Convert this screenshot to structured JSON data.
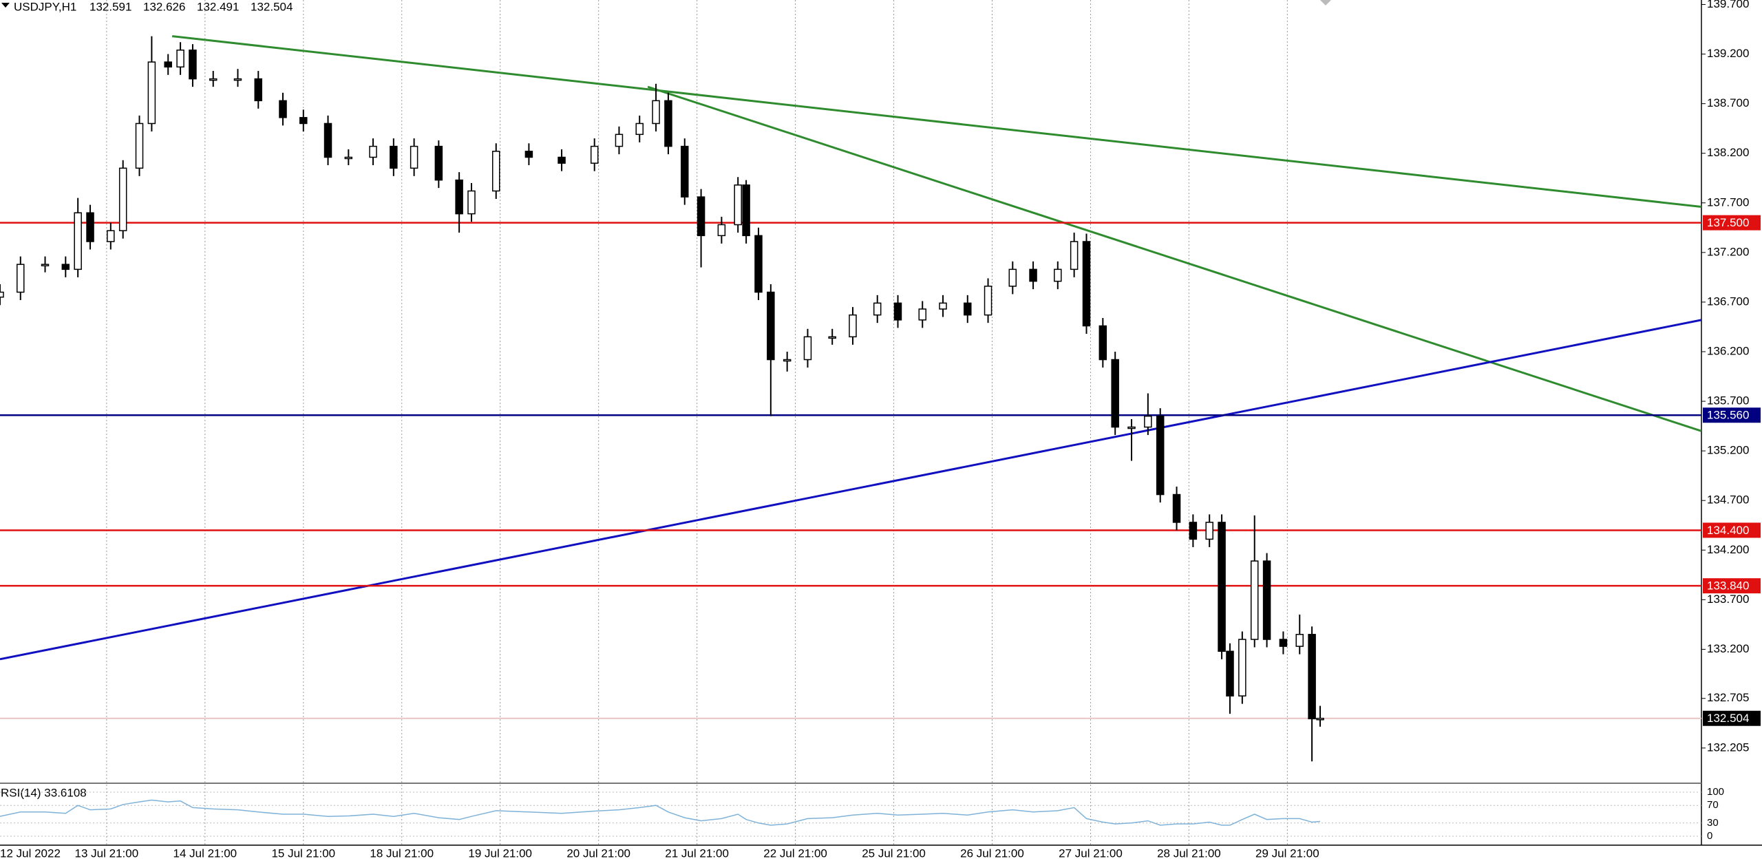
{
  "chart_data": {
    "type": "candlestick",
    "symbol": "USDJPY,H1",
    "quote": [
      132.591,
      132.626,
      132.491,
      132.504
    ],
    "xlim": [
      0,
      415
    ],
    "xticks": [
      {
        "value": 0,
        "label": "12 Jul 2022"
      },
      {
        "value": 26,
        "label": "13 Jul 21:00"
      },
      {
        "value": 50,
        "label": "14 Jul 21:00"
      },
      {
        "value": 74,
        "label": "15 Jul 21:00"
      },
      {
        "value": 98,
        "label": "18 Jul 21:00"
      },
      {
        "value": 122,
        "label": "19 Jul 21:00"
      },
      {
        "value": 146,
        "label": "20 Jul 21:00"
      },
      {
        "value": 170,
        "label": "21 Jul 21:00"
      },
      {
        "value": 194,
        "label": "22 Jul 21:00"
      },
      {
        "value": 218,
        "label": "25 Jul 21:00"
      },
      {
        "value": 242,
        "label": "26 Jul 21:00"
      },
      {
        "value": 266,
        "label": "27 Jul 21:00"
      },
      {
        "value": 290,
        "label": "28 Jul 21:00"
      },
      {
        "value": 314,
        "label": "29 Jul 21:00"
      }
    ],
    "ylim": [
      131.85,
      139.745
    ],
    "yticks": [
      {
        "value": 139.7,
        "label": "139.700"
      },
      {
        "value": 139.2,
        "label": "139.200"
      },
      {
        "value": 138.7,
        "label": "138.700"
      },
      {
        "value": 138.2,
        "label": "138.200"
      },
      {
        "value": 137.7,
        "label": "137.700"
      },
      {
        "value": 137.2,
        "label": "137.200"
      },
      {
        "value": 136.7,
        "label": "136.700"
      },
      {
        "value": 136.2,
        "label": "136.200"
      },
      {
        "value": 135.7,
        "label": "135.700"
      },
      {
        "value": 135.2,
        "label": "135.200"
      },
      {
        "value": 134.7,
        "label": "134.700"
      },
      {
        "value": 134.2,
        "label": "134.200"
      },
      {
        "value": 133.7,
        "label": "133.700"
      },
      {
        "value": 133.2,
        "label": "133.200"
      },
      132.705,
      132.205
    ],
    "grid": true,
    "up_color": "#ffffff",
    "down_color": "#000000",
    "x": [
      0,
      5,
      11,
      16,
      19,
      22,
      27,
      30,
      34,
      37,
      41,
      44,
      47,
      52,
      58,
      63,
      69,
      74,
      80,
      85,
      91,
      96,
      101,
      107,
      112,
      115,
      121,
      129,
      137,
      145,
      151,
      156,
      160,
      163,
      167,
      171,
      176,
      180,
      182,
      185,
      188,
      192,
      197,
      203,
      208,
      214,
      219,
      225,
      230,
      236,
      241,
      247,
      252,
      258,
      262,
      265,
      269,
      272,
      276,
      280,
      283,
      287,
      291,
      295,
      298,
      300,
      303,
      306,
      309,
      313,
      317,
      320,
      322
    ],
    "open": [
      136.75,
      136.8,
      137.08,
      137.08,
      137.03,
      137.6,
      137.31,
      137.42,
      138.05,
      138.5,
      139.12,
      139.07,
      139.24,
      138.95,
      138.95,
      138.95,
      138.73,
      138.56,
      138.5,
      138.16,
      138.16,
      138.27,
      138.05,
      138.27,
      137.93,
      137.59,
      137.82,
      138.22,
      138.16,
      138.1,
      138.27,
      138.39,
      138.5,
      138.73,
      138.27,
      137.76,
      137.37,
      137.48,
      137.88,
      137.37,
      136.8,
      136.12,
      136.12,
      136.35,
      136.35,
      136.57,
      136.69,
      136.52,
      136.63,
      136.69,
      136.57,
      136.86,
      137.03,
      136.91,
      137.03,
      137.31,
      136.46,
      136.12,
      135.44,
      135.44,
      135.55,
      134.76,
      134.48,
      134.31,
      134.48,
      133.18,
      132.73,
      133.3,
      134.09,
      133.3,
      133.23,
      133.35,
      132.5
    ],
    "high": [
      136.88,
      137.16,
      137.16,
      137.16,
      137.75,
      137.68,
      137.5,
      138.13,
      138.58,
      139.38,
      139.2,
      139.32,
      139.3,
      139.03,
      139.05,
      139.03,
      138.81,
      138.64,
      138.58,
      138.24,
      138.35,
      138.35,
      138.35,
      138.33,
      138.01,
      137.9,
      138.3,
      138.3,
      138.24,
      138.35,
      138.47,
      138.58,
      138.9,
      138.81,
      138.35,
      137.84,
      137.56,
      137.96,
      137.93,
      137.45,
      136.88,
      136.2,
      136.43,
      136.43,
      136.65,
      136.77,
      136.77,
      136.71,
      136.77,
      136.77,
      136.94,
      137.11,
      137.11,
      137.11,
      137.4,
      137.39,
      136.54,
      136.2,
      135.52,
      135.78,
      135.63,
      134.84,
      134.56,
      134.56,
      134.56,
      133.26,
      133.38,
      134.55,
      134.17,
      133.38,
      133.55,
      133.43,
      132.63
    ],
    "low": [
      136.67,
      136.72,
      137.0,
      136.95,
      136.95,
      137.23,
      137.23,
      137.34,
      137.97,
      138.42,
      138.99,
      138.99,
      138.87,
      138.87,
      138.87,
      138.65,
      138.48,
      138.42,
      138.08,
      138.08,
      138.08,
      137.97,
      137.97,
      137.85,
      137.4,
      137.51,
      137.74,
      138.08,
      138.02,
      138.02,
      138.19,
      138.31,
      138.42,
      138.19,
      137.68,
      137.05,
      137.29,
      137.4,
      137.29,
      136.72,
      135.55,
      136.0,
      136.04,
      136.27,
      136.27,
      136.49,
      136.44,
      136.44,
      136.55,
      136.49,
      136.49,
      136.78,
      136.83,
      136.83,
      136.95,
      136.38,
      136.04,
      135.36,
      135.1,
      135.36,
      134.68,
      134.4,
      134.23,
      134.23,
      133.1,
      132.55,
      132.65,
      133.22,
      133.22,
      133.15,
      133.15,
      132.07,
      132.42
    ],
    "close": [
      136.8,
      137.08,
      137.08,
      137.03,
      137.6,
      137.31,
      137.42,
      138.05,
      138.5,
      139.12,
      139.07,
      139.24,
      138.95,
      138.95,
      138.95,
      138.73,
      138.56,
      138.5,
      138.16,
      138.16,
      138.27,
      138.05,
      138.27,
      137.93,
      137.59,
      137.82,
      138.22,
      138.16,
      138.1,
      138.27,
      138.39,
      138.5,
      138.73,
      138.27,
      137.76,
      137.37,
      137.48,
      137.88,
      137.37,
      136.8,
      136.12,
      136.12,
      136.35,
      136.35,
      136.57,
      136.69,
      136.52,
      136.63,
      136.69,
      136.57,
      136.86,
      137.03,
      136.91,
      137.03,
      137.31,
      136.46,
      136.12,
      135.44,
      135.44,
      135.55,
      134.76,
      134.48,
      134.31,
      134.48,
      133.18,
      132.73,
      133.3,
      134.09,
      133.3,
      133.23,
      133.35,
      132.5,
      132.504
    ],
    "levels": [
      {
        "value": 137.5,
        "label": "137.500",
        "color": "#e01010"
      },
      {
        "value": 135.56,
        "label": "135.560",
        "color": "#000080"
      },
      {
        "value": 134.4,
        "label": "134.400",
        "color": "#e01010"
      },
      {
        "value": 133.84,
        "label": "133.840",
        "color": "#e01010"
      }
    ],
    "bid": {
      "value": 132.504,
      "color": "#000000",
      "line_color": "#e8c4c4"
    },
    "trendlines": [
      {
        "color": "#2e8b2e",
        "x": [
          42,
          415
        ],
        "y": [
          139.38,
          137.66
        ]
      },
      {
        "color": "#2e8b2e",
        "x": [
          158,
          415
        ],
        "y": [
          138.87,
          135.4
        ]
      },
      {
        "color": "#1010c0",
        "x": [
          0,
          415
        ],
        "y": [
          133.1,
          136.52
        ]
      }
    ],
    "rsi": {
      "label": "RSI(14) 33.6108",
      "color": "#7fb2d8",
      "ylim": [
        0,
        100
      ],
      "yticks": [
        100,
        70,
        30,
        0
      ],
      "values": [
        45,
        55,
        55,
        52,
        70,
        60,
        62,
        72,
        78,
        82,
        78,
        80,
        65,
        62,
        60,
        55,
        50,
        50,
        45,
        46,
        50,
        45,
        52,
        42,
        38,
        45,
        58,
        55,
        52,
        57,
        60,
        65,
        70,
        55,
        42,
        35,
        40,
        50,
        38,
        30,
        25,
        28,
        40,
        42,
        48,
        52,
        48,
        50,
        52,
        48,
        55,
        60,
        55,
        58,
        65,
        40,
        32,
        28,
        30,
        35,
        25,
        28,
        28,
        32,
        25,
        25,
        38,
        50,
        38,
        40,
        40,
        32,
        33.6108
      ]
    }
  }
}
